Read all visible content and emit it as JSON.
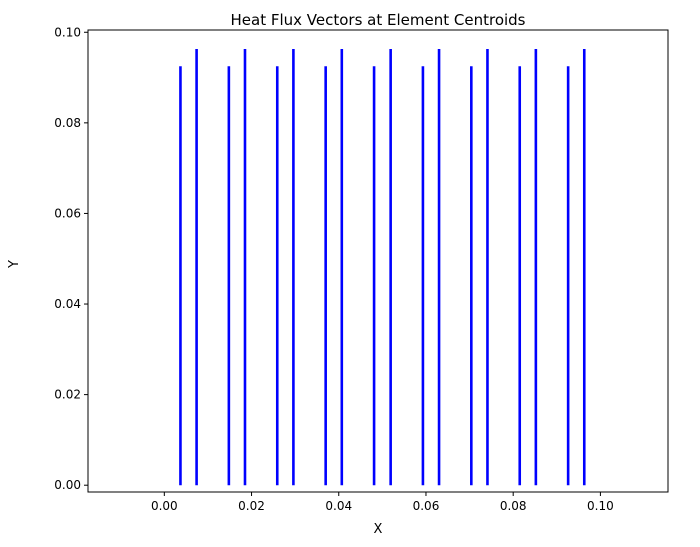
{
  "chart_data": {
    "type": "quiver",
    "title": "Heat Flux Vectors at Element Centroids",
    "xlabel": "X",
    "ylabel": "Y",
    "xlim": [
      -0.0175,
      0.1155
    ],
    "ylim": [
      -0.0015,
      0.1005
    ],
    "xticks": [
      "0.00",
      "0.02",
      "0.04",
      "0.06",
      "0.08",
      "0.10"
    ],
    "yticks": [
      "0.00",
      "0.02",
      "0.04",
      "0.06",
      "0.08",
      "0.10"
    ],
    "xtick_values": [
      0,
      0.02,
      0.04,
      0.06,
      0.08,
      0.1
    ],
    "ytick_values": [
      0,
      0.02,
      0.04,
      0.06,
      0.08,
      0.1
    ],
    "grid": false,
    "color": "#0000ff",
    "series": [
      {
        "x": [
          0.0037,
          0.0074,
          0.0148,
          0.0185,
          0.0259,
          0.0296,
          0.037,
          0.0407,
          0.0481,
          0.0519,
          0.0593,
          0.063,
          0.0704,
          0.0741,
          0.0815,
          0.0852,
          0.0926,
          0.0963
        ],
        "y_end": [
          0.0925,
          0.0963,
          0.0925,
          0.0963,
          0.0925,
          0.0963,
          0.0925,
          0.0963,
          0.0925,
          0.0963,
          0.0925,
          0.0963,
          0.0925,
          0.0963,
          0.0925,
          0.0963,
          0.0925,
          0.0963
        ]
      }
    ]
  }
}
